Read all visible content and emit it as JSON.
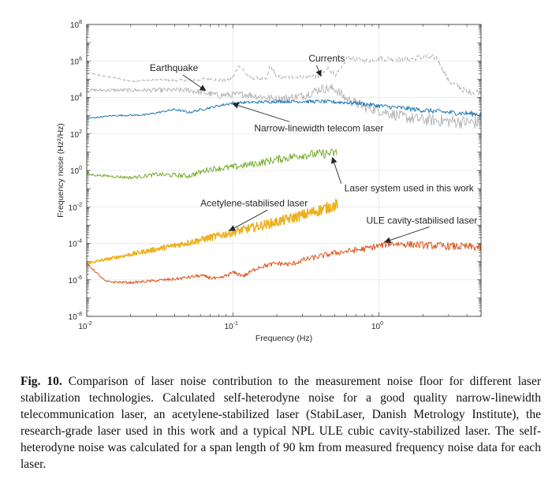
{
  "chart_data": {
    "type": "line",
    "xscale": "log",
    "yscale": "log",
    "xlim": [
      0.01,
      5
    ],
    "ylim": [
      1e-08,
      100000000.0
    ],
    "xlabel": "Frequency (Hz)",
    "ylabel": "Frequency noise (Hz²/Hz)",
    "grid": true,
    "x_ticks": [
      {
        "base": "10",
        "exp": "-2",
        "value": 0.01
      },
      {
        "base": "10",
        "exp": "-1",
        "value": 0.1
      },
      {
        "base": "10",
        "exp": "0",
        "value": 1
      }
    ],
    "y_ticks": [
      {
        "base": "10",
        "exp": "8",
        "value": 100000000.0
      },
      {
        "base": "10",
        "exp": "6",
        "value": 1000000.0
      },
      {
        "base": "10",
        "exp": "4",
        "value": 10000.0
      },
      {
        "base": "10",
        "exp": "2",
        "value": 100.0
      },
      {
        "base": "10",
        "exp": "0",
        "value": 1
      },
      {
        "base": "10",
        "exp": "-2",
        "value": 0.01
      },
      {
        "base": "10",
        "exp": "-4",
        "value": 0.0001
      },
      {
        "base": "10",
        "exp": "-6",
        "value": 1e-06
      },
      {
        "base": "10",
        "exp": "-8",
        "value": 1e-08
      }
    ],
    "series": [
      {
        "name": "Currents",
        "color": "#b0b0b0",
        "style": "dashed",
        "noise": 0.12,
        "points": [
          [
            0.01,
            220000.0
          ],
          [
            0.02,
            80000.0
          ],
          [
            0.03,
            90000.0
          ],
          [
            0.05,
            85000.0
          ],
          [
            0.07,
            110000.0
          ],
          [
            0.09,
            80000.0
          ],
          [
            0.1,
            120000.0
          ],
          [
            0.11,
            600000.0
          ],
          [
            0.13,
            120000.0
          ],
          [
            0.17,
            100000.0
          ],
          [
            0.18,
            600000.0
          ],
          [
            0.2,
            130000.0
          ],
          [
            0.3,
            130000.0
          ],
          [
            0.35,
            150000.0
          ],
          [
            0.4,
            140000.0
          ],
          [
            0.45,
            400000.0
          ],
          [
            0.5,
            180000.0
          ],
          [
            0.55,
            300000.0
          ],
          [
            0.6,
            1500000.0
          ],
          [
            0.8,
            1000000.0
          ],
          [
            1.0,
            1400000.0
          ],
          [
            1.5,
            1200000.0
          ],
          [
            2.0,
            1600000.0
          ],
          [
            2.5,
            1500000.0
          ],
          [
            3.0,
            80000.0
          ],
          [
            4.0,
            20000.0
          ],
          [
            5.0,
            20000.0
          ]
        ]
      },
      {
        "name": "Earthquake",
        "color": "#b8b8b8",
        "style": "solid",
        "noise": 0.25,
        "points": [
          [
            0.01,
            25000.0
          ],
          [
            0.05,
            25000.0
          ],
          [
            0.08,
            13000.0
          ],
          [
            0.12,
            15000.0
          ],
          [
            0.2,
            8000.0
          ],
          [
            0.3,
            12000.0
          ],
          [
            0.4,
            30000.0
          ],
          [
            0.5,
            30000.0
          ],
          [
            0.6,
            8000.0
          ],
          [
            0.8,
            3000.0
          ],
          [
            1.0,
            2000.0
          ],
          [
            1.5,
            800
          ],
          [
            2.0,
            600
          ],
          [
            3.0,
            500
          ],
          [
            5.0,
            400
          ]
        ]
      },
      {
        "name": "Narrow-linewidth telecom laser",
        "color": "#1f77b4",
        "style": "solid",
        "noise": 0.1,
        "points": [
          [
            0.01,
            700
          ],
          [
            0.015,
            1000
          ],
          [
            0.025,
            1100
          ],
          [
            0.04,
            2200
          ],
          [
            0.05,
            1500
          ],
          [
            0.08,
            3500
          ],
          [
            0.1,
            5000
          ],
          [
            0.2,
            6000
          ],
          [
            0.4,
            6000
          ],
          [
            0.7,
            5000
          ],
          [
            1.0,
            3500
          ],
          [
            2.0,
            2000
          ],
          [
            3.0,
            1500
          ],
          [
            5.0,
            1200
          ]
        ]
      },
      {
        "name": "Laser system used in this work",
        "color": "#77ac30",
        "style": "solid",
        "noise": 0.18,
        "points": [
          [
            0.01,
            0.6
          ],
          [
            0.02,
            0.4
          ],
          [
            0.03,
            0.6
          ],
          [
            0.05,
            0.5
          ],
          [
            0.07,
            1.2
          ],
          [
            0.1,
            1.5
          ],
          [
            0.15,
            2.5
          ],
          [
            0.2,
            4
          ],
          [
            0.3,
            7
          ],
          [
            0.4,
            8
          ],
          [
            0.5,
            9
          ],
          [
            0.52,
            9
          ]
        ]
      },
      {
        "name": "Acetylene-stabilised laser",
        "color": "#edb120",
        "style": "thick",
        "noise": 0.22,
        "points": [
          [
            0.01,
            8e-06
          ],
          [
            0.02,
            2.5e-05
          ],
          [
            0.05,
            0.00011
          ],
          [
            0.1,
            0.0004
          ],
          [
            0.2,
            0.0015
          ],
          [
            0.3,
            0.0035
          ],
          [
            0.5,
            0.012
          ],
          [
            0.52,
            0.015
          ]
        ]
      },
      {
        "name": "ULE cavity-stabilised laser",
        "color": "#d95319",
        "style": "solid",
        "noise": 0.15,
        "points": [
          [
            0.01,
            8e-06
          ],
          [
            0.0135,
            8e-07
          ],
          [
            0.02,
            7e-07
          ],
          [
            0.04,
            1.1e-06
          ],
          [
            0.06,
            1.7e-06
          ],
          [
            0.08,
            1.1e-06
          ],
          [
            0.1,
            2.5e-06
          ],
          [
            0.12,
            1.7e-06
          ],
          [
            0.15,
            5e-06
          ],
          [
            0.2,
            8e-06
          ],
          [
            0.25,
            7e-06
          ],
          [
            0.3,
            1.2e-05
          ],
          [
            0.5,
            3e-05
          ],
          [
            0.8,
            5e-05
          ],
          [
            1.2,
            0.0001
          ],
          [
            2.0,
            8e-05
          ],
          [
            3.0,
            7e-05
          ],
          [
            5.0,
            6e-05
          ]
        ]
      }
    ],
    "annotations": [
      {
        "text": "Earthquake",
        "x": 0.027,
        "y": 280000.0,
        "arrow_to": [
          0.065,
          24000.0
        ]
      },
      {
        "text": "Currents",
        "x": 0.33,
        "y": 950000.0,
        "arrow_to": [
          0.4,
          150000.0
        ]
      },
      {
        "text": "Narrow-linewidth telecom laser",
        "x": 0.14,
        "y": 140,
        "arrow_to": [
          0.1,
          4500.0
        ]
      },
      {
        "text": "Laser system used in this work",
        "x": 0.58,
        "y": 0.07,
        "arrow_to": [
          0.48,
          5
        ]
      },
      {
        "text": "Acetylene-stabilised laser",
        "x": 0.06,
        "y": 0.011,
        "arrow_to": [
          0.095,
          0.0005
        ]
      },
      {
        "text": "ULE cavity-stabilised laser",
        "x": 0.82,
        "y": 0.0012,
        "arrow_to": [
          1.1,
          0.00012
        ]
      }
    ]
  },
  "caption": {
    "label": "Fig. 10.",
    "text": " Comparison of laser noise contribution to the measurement noise floor for different laser stabilization technologies. Calculated self-heterodyne noise for a good quality narrow-linewidth telecommunication laser, an acetylene-stabilized laser (StabiLaser, Danish Metrology Institute), the research-grade laser used in this work and a typical NPL ULE cubic cavity-stabilized laser. The self-heterodyne noise was calculated for a span length of 90 km from measured frequency noise data for each laser."
  }
}
